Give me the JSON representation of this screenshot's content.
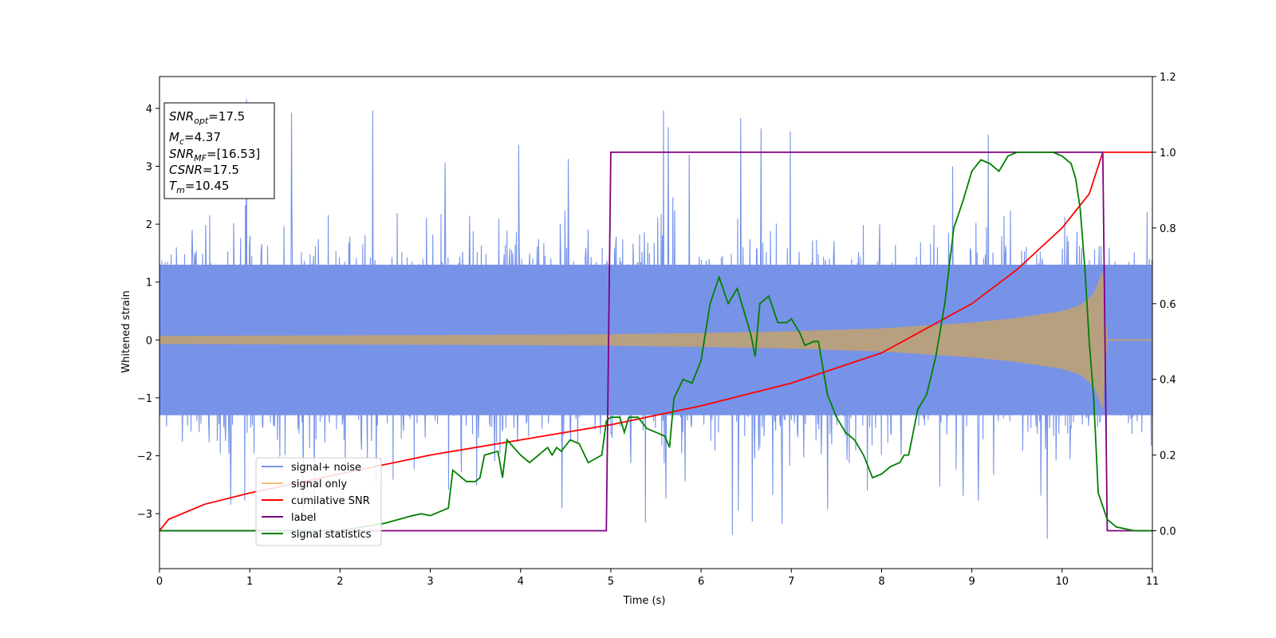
{
  "chart_data": {
    "type": "line",
    "xlabel": "Time (s)",
    "ylabel": "Whitened strain",
    "xlim": [
      0,
      11
    ],
    "ylim_left": [
      -3.95,
      4.55
    ],
    "ylim_right": [
      -0.1,
      1.2
    ],
    "x_ticks": [
      0,
      1,
      2,
      3,
      4,
      5,
      6,
      7,
      8,
      9,
      10,
      11
    ],
    "y_ticks_left": [
      -3,
      -2,
      -1,
      0,
      1,
      2,
      3,
      4
    ],
    "y_ticks_right": [
      0.0,
      0.2,
      0.4,
      0.6,
      0.8,
      1.0,
      1.2
    ],
    "legend_position": "lower-left",
    "info_box": {
      "snr_opt": {
        "label": "SNR",
        "sub": "opt",
        "value": "=17.5"
      },
      "mc": {
        "label": "M",
        "sub": "c",
        "value": "=4.37"
      },
      "snr_mf": {
        "label": "SNR",
        "sub": "MF",
        "value": "=[16.53]"
      },
      "csnr": {
        "label": "CSNR",
        "value": "=17.5"
      },
      "tm": {
        "label": "T",
        "sub": "m",
        "value": "=10.45"
      }
    },
    "series": [
      {
        "name": "signal+ noise",
        "color": "#4169e1",
        "axis": "left",
        "style": "noise-band",
        "band_low": -1.5,
        "band_high": 1.5,
        "spike_max": 4.2,
        "spike_min": -3.5
      },
      {
        "name": "signal only",
        "color": "#f5c07a",
        "axis": "left",
        "style": "chirp-envelope",
        "x": [
          0,
          1,
          2,
          3,
          4,
          5,
          6,
          7,
          8,
          9,
          9.5,
          10,
          10.2,
          10.35,
          10.45,
          10.5,
          11
        ],
        "amplitude": [
          0.07,
          0.075,
          0.08,
          0.085,
          0.09,
          0.1,
          0.12,
          0.15,
          0.2,
          0.3,
          0.38,
          0.5,
          0.6,
          0.8,
          1.2,
          0,
          0
        ]
      },
      {
        "name": "cumilative SNR",
        "color": "#ff0000",
        "axis": "right",
        "x": [
          0,
          0.1,
          0.5,
          1,
          2,
          3,
          4,
          5,
          6,
          7,
          8,
          9,
          9.5,
          10,
          10.3,
          10.45,
          11
        ],
        "y": [
          0,
          0.03,
          0.07,
          0.1,
          0.15,
          0.2,
          0.24,
          0.28,
          0.33,
          0.39,
          0.47,
          0.6,
          0.69,
          0.8,
          0.89,
          1.0,
          1.0
        ]
      },
      {
        "name": "label",
        "color": "#800080",
        "axis": "right",
        "x": [
          0,
          4.95,
          5.0,
          10.45,
          10.5,
          11
        ],
        "y": [
          0,
          0,
          1,
          1,
          0,
          0
        ]
      },
      {
        "name": "signal statistics",
        "color": "#008000",
        "axis": "right",
        "x": [
          0,
          2.0,
          2.5,
          2.8,
          2.9,
          3.0,
          3.1,
          3.2,
          3.25,
          3.4,
          3.5,
          3.55,
          3.6,
          3.75,
          3.8,
          3.85,
          4.0,
          4.1,
          4.2,
          4.3,
          4.35,
          4.4,
          4.45,
          4.55,
          4.65,
          4.75,
          4.9,
          4.95,
          5.0,
          5.1,
          5.15,
          5.2,
          5.3,
          5.4,
          5.5,
          5.6,
          5.65,
          5.7,
          5.8,
          5.9,
          6.0,
          6.1,
          6.2,
          6.3,
          6.4,
          6.5,
          6.55,
          6.6,
          6.65,
          6.75,
          6.85,
          6.95,
          7.0,
          7.1,
          7.15,
          7.25,
          7.3,
          7.4,
          7.5,
          7.6,
          7.7,
          7.8,
          7.9,
          8.0,
          8.1,
          8.2,
          8.25,
          8.3,
          8.4,
          8.5,
          8.6,
          8.7,
          8.8,
          8.9,
          9.0,
          9.1,
          9.2,
          9.3,
          9.4,
          9.5,
          9.7,
          9.9,
          10.0,
          10.1,
          10.15,
          10.2,
          10.25,
          10.3,
          10.35,
          10.4,
          10.5,
          10.6,
          10.8,
          11.0
        ],
        "y": [
          0.0,
          0.0,
          0.02,
          0.04,
          0.045,
          0.04,
          0.05,
          0.06,
          0.16,
          0.13,
          0.13,
          0.14,
          0.2,
          0.21,
          0.14,
          0.24,
          0.2,
          0.18,
          0.2,
          0.22,
          0.2,
          0.22,
          0.21,
          0.24,
          0.23,
          0.18,
          0.2,
          0.29,
          0.3,
          0.3,
          0.26,
          0.3,
          0.3,
          0.27,
          0.26,
          0.25,
          0.22,
          0.35,
          0.4,
          0.39,
          0.45,
          0.6,
          0.67,
          0.6,
          0.64,
          0.56,
          0.52,
          0.46,
          0.6,
          0.62,
          0.55,
          0.55,
          0.56,
          0.52,
          0.49,
          0.5,
          0.5,
          0.36,
          0.3,
          0.26,
          0.24,
          0.2,
          0.14,
          0.15,
          0.17,
          0.18,
          0.2,
          0.2,
          0.32,
          0.36,
          0.46,
          0.6,
          0.8,
          0.87,
          0.95,
          0.98,
          0.97,
          0.95,
          0.99,
          1.0,
          1.0,
          1.0,
          0.99,
          0.97,
          0.93,
          0.85,
          0.7,
          0.5,
          0.35,
          0.1,
          0.03,
          0.01,
          0.0,
          0.0
        ]
      }
    ]
  }
}
